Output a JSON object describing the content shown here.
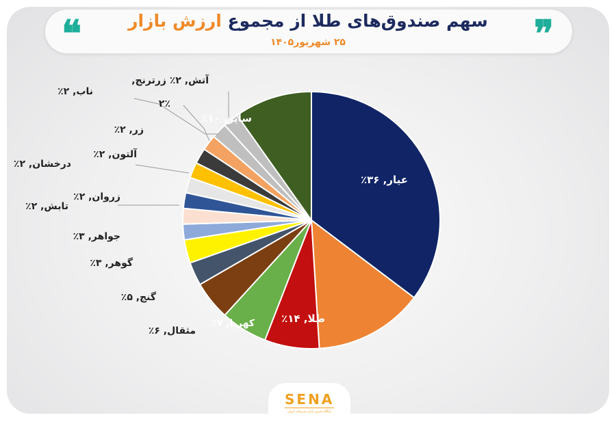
{
  "header": {
    "title_main": "سهم صندوق‌های طلا از مجموع",
    "title_accent": "ارزش بازار",
    "subtitle": "۲۵ شهریور۱۴۰۵"
  },
  "logo": {
    "text": "SENA",
    "tagline": "پایگاه خبری بازار سرمایه ایران"
  },
  "colors": {
    "accent": "#ee8a2a",
    "title": "#1c2a5e",
    "quote": "#1fae9a"
  },
  "chart_data": {
    "type": "pie",
    "title": "سهم صندوق‌های طلا از مجموع ارزش بازار",
    "slices": [
      {
        "label": "عیار",
        "value": 36,
        "value_label": "۳۶٪",
        "color": "#102466"
      },
      {
        "label": "طلا",
        "value": 14,
        "value_label": "۱۴٪",
        "color": "#ee8333"
      },
      {
        "label": "کهربا",
        "value": 7,
        "value_label": "۷٪",
        "color": "#c30f0f"
      },
      {
        "label": "مثقال",
        "value": 6,
        "value_label": "۶٪",
        "color": "#6ab04a"
      },
      {
        "label": "گنج",
        "value": 5,
        "value_label": "۵٪",
        "color": "#7b3f12"
      },
      {
        "label": "گوهر",
        "value": 3,
        "value_label": "۳٪",
        "color": "#44546a"
      },
      {
        "label": "جواهر",
        "value": 3,
        "value_label": "۳٪",
        "color": "#fff200"
      },
      {
        "label": "تابش",
        "value": 2,
        "value_label": "۲٪",
        "color": "#8eaadb"
      },
      {
        "label": "زروان",
        "value": 2,
        "value_label": "۲٪",
        "color": "#fbe0d2"
      },
      {
        "label": "درخشان",
        "value": 2,
        "value_label": "۲٪",
        "color": "#2f5597"
      },
      {
        "label": "آلتون",
        "value": 2,
        "value_label": "۲٪",
        "color": "#e6e6e6"
      },
      {
        "label": "زر",
        "value": 2,
        "value_label": "۲٪",
        "color": "#ffc000"
      },
      {
        "label": "",
        "value": 2,
        "value_label": "۲٪",
        "color": "#3b3b3b"
      },
      {
        "label": "ناب",
        "value": 2,
        "value_label": "۲٪",
        "color": "#f4a261"
      },
      {
        "label": "آتش",
        "value": 2,
        "value_label": "۲٪",
        "color": "#bfbfbf"
      },
      {
        "label": "زرترنج",
        "value": 2,
        "value_label": "۲٪",
        "color": "#bfbfbf"
      },
      {
        "label": "سایر",
        "value": 10,
        "value_label": "۱۰٪",
        "color": "#3e5e22"
      }
    ]
  }
}
